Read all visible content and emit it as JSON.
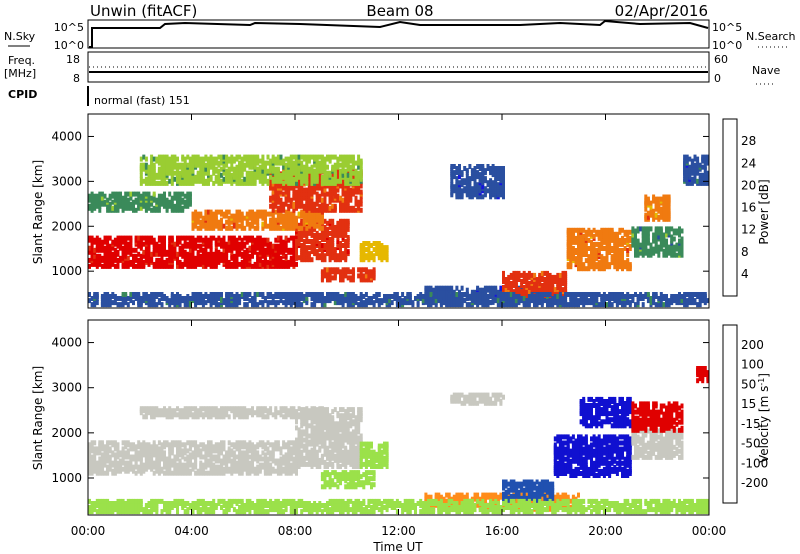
{
  "header": {
    "station": "Unwin (fitACF)",
    "beam": "Beam 08",
    "date": "02/Apr/2016"
  },
  "top_panels": {
    "nsky_label": "N.Sky",
    "nsky_ticks": [
      "10^5",
      "10^0"
    ],
    "nsearch_label": "N.Search",
    "freq_label_1": "Freq.",
    "freq_label_2": "[MHz]",
    "freq_ticks": [
      "18",
      "8"
    ],
    "nave_ticks": [
      "60",
      "0"
    ],
    "nave_label": "Nave",
    "cpid_label": "CPID",
    "cpid_text": "normal (fast) 151"
  },
  "colors": {
    "power": [
      "#1515e0",
      "#2a4fa0",
      "#3a8a5a",
      "#9acd32",
      "#e6b800",
      "#f07a10",
      "#e23010",
      "#e00000"
    ],
    "velocity": [
      "#e00000",
      "#f04a10",
      "#ff8c1a",
      "#f5b041",
      "#c8c8c0",
      "#9be14a",
      "#2e9a2e",
      "#2050b0",
      "#1010d0"
    ]
  },
  "chart_data": [
    {
      "type": "heatmap",
      "title": "Power [dB]",
      "xlabel": "Time UT",
      "ylabel": "Slant Range [km]",
      "x_ticks": [
        "00:00",
        "04:00",
        "08:00",
        "12:00",
        "16:00",
        "20:00",
        "00:00"
      ],
      "x_range_hours": [
        0,
        24
      ],
      "y_ticks": [
        "1000",
        "2000",
        "3000",
        "4000"
      ],
      "y_range_km": [
        180,
        4500
      ],
      "colorbar": {
        "label": "Power [dB]",
        "ticks": [
          "4",
          "8",
          "12",
          "16",
          "20",
          "24",
          "28"
        ],
        "range": [
          0,
          32
        ]
      },
      "regions": [
        {
          "t0": 0.0,
          "t1": 8.0,
          "r0": 1050,
          "r1": 1700,
          "value": 28
        },
        {
          "t0": 8.0,
          "t1": 10.0,
          "r0": 1200,
          "r1": 2100,
          "value": 27
        },
        {
          "t0": 4.0,
          "t1": 9.0,
          "r0": 1900,
          "r1": 2300,
          "value": 22
        },
        {
          "t0": 7.0,
          "t1": 10.5,
          "r0": 2300,
          "r1": 3200,
          "value": 24
        },
        {
          "t0": 0.0,
          "t1": 4.0,
          "r0": 2300,
          "r1": 2700,
          "value": 11
        },
        {
          "t0": 2.0,
          "t1": 10.5,
          "r0": 2900,
          "r1": 3500,
          "value": 13
        },
        {
          "t0": 9.0,
          "t1": 11.0,
          "r0": 750,
          "r1": 1000,
          "value": 25
        },
        {
          "t0": 10.5,
          "t1": 11.5,
          "r0": 1200,
          "r1": 1600,
          "value": 18
        },
        {
          "t0": 13.0,
          "t1": 18.0,
          "r0": 250,
          "r1": 600,
          "value": 6
        },
        {
          "t0": 16.0,
          "t1": 18.5,
          "r0": 400,
          "r1": 900,
          "value": 24
        },
        {
          "t0": 14.0,
          "t1": 16.0,
          "r0": 2600,
          "r1": 3300,
          "value": 5
        },
        {
          "t0": 18.5,
          "t1": 21.0,
          "r0": 1000,
          "r1": 1900,
          "value": 22
        },
        {
          "t0": 21.0,
          "t1": 23.0,
          "r0": 1300,
          "r1": 1900,
          "value": 10
        },
        {
          "t0": 21.5,
          "t1": 22.5,
          "r0": 2100,
          "r1": 2600,
          "value": 22
        },
        {
          "t0": 23.0,
          "t1": 24.0,
          "r0": 2900,
          "r1": 3500,
          "value": 6
        },
        {
          "t0": 0.0,
          "t1": 24.0,
          "r0": 200,
          "r1": 450,
          "value": 7
        }
      ]
    },
    {
      "type": "heatmap",
      "title": "Velocity [m s^-1]",
      "xlabel": "Time UT",
      "ylabel": "Slant Range [km]",
      "x_ticks": [
        "00:00",
        "04:00",
        "08:00",
        "12:00",
        "16:00",
        "20:00",
        "00:00"
      ],
      "x_range_hours": [
        0,
        24
      ],
      "y_ticks": [
        "1000",
        "2000",
        "3000",
        "4000"
      ],
      "y_range_km": [
        180,
        4500
      ],
      "colorbar": {
        "label": "Velocity [m s^-1]",
        "ticks": [
          "200",
          "100",
          "50",
          "15",
          "-15",
          "-50",
          "-100",
          "-200"
        ],
        "range": [
          -250,
          250
        ]
      },
      "regions": [
        {
          "t0": 0.0,
          "t1": 8.0,
          "r0": 1050,
          "r1": 1750,
          "value": 0
        },
        {
          "t0": 8.0,
          "t1": 10.5,
          "r0": 1200,
          "r1": 2500,
          "value": 0
        },
        {
          "t0": 2.0,
          "t1": 9.0,
          "r0": 2300,
          "r1": 2500,
          "value": 0
        },
        {
          "t0": 9.0,
          "t1": 11.0,
          "r0": 750,
          "r1": 1100,
          "value": 30
        },
        {
          "t0": 10.5,
          "t1": 11.5,
          "r0": 1200,
          "r1": 1700,
          "value": 30
        },
        {
          "t0": 13.0,
          "t1": 19.0,
          "r0": 250,
          "r1": 600,
          "value": -75
        },
        {
          "t0": 16.0,
          "t1": 18.0,
          "r0": 450,
          "r1": 900,
          "value": 120
        },
        {
          "t0": 18.0,
          "t1": 21.0,
          "r0": 1000,
          "r1": 1900,
          "value": 220
        },
        {
          "t0": 19.0,
          "t1": 21.0,
          "r0": 2100,
          "r1": 2700,
          "value": 220
        },
        {
          "t0": 21.0,
          "t1": 23.0,
          "r0": 1400,
          "r1": 2000,
          "value": 0
        },
        {
          "t0": 21.0,
          "t1": 23.0,
          "r0": 2000,
          "r1": 2600,
          "value": -220
        },
        {
          "t0": 23.5,
          "t1": 24.0,
          "r0": 3100,
          "r1": 3400,
          "value": -220
        },
        {
          "t0": 14.0,
          "t1": 16.0,
          "r0": 2600,
          "r1": 2800,
          "value": 0
        },
        {
          "t0": 0.0,
          "t1": 24.0,
          "r0": 200,
          "r1": 450,
          "value": 30
        }
      ]
    }
  ]
}
